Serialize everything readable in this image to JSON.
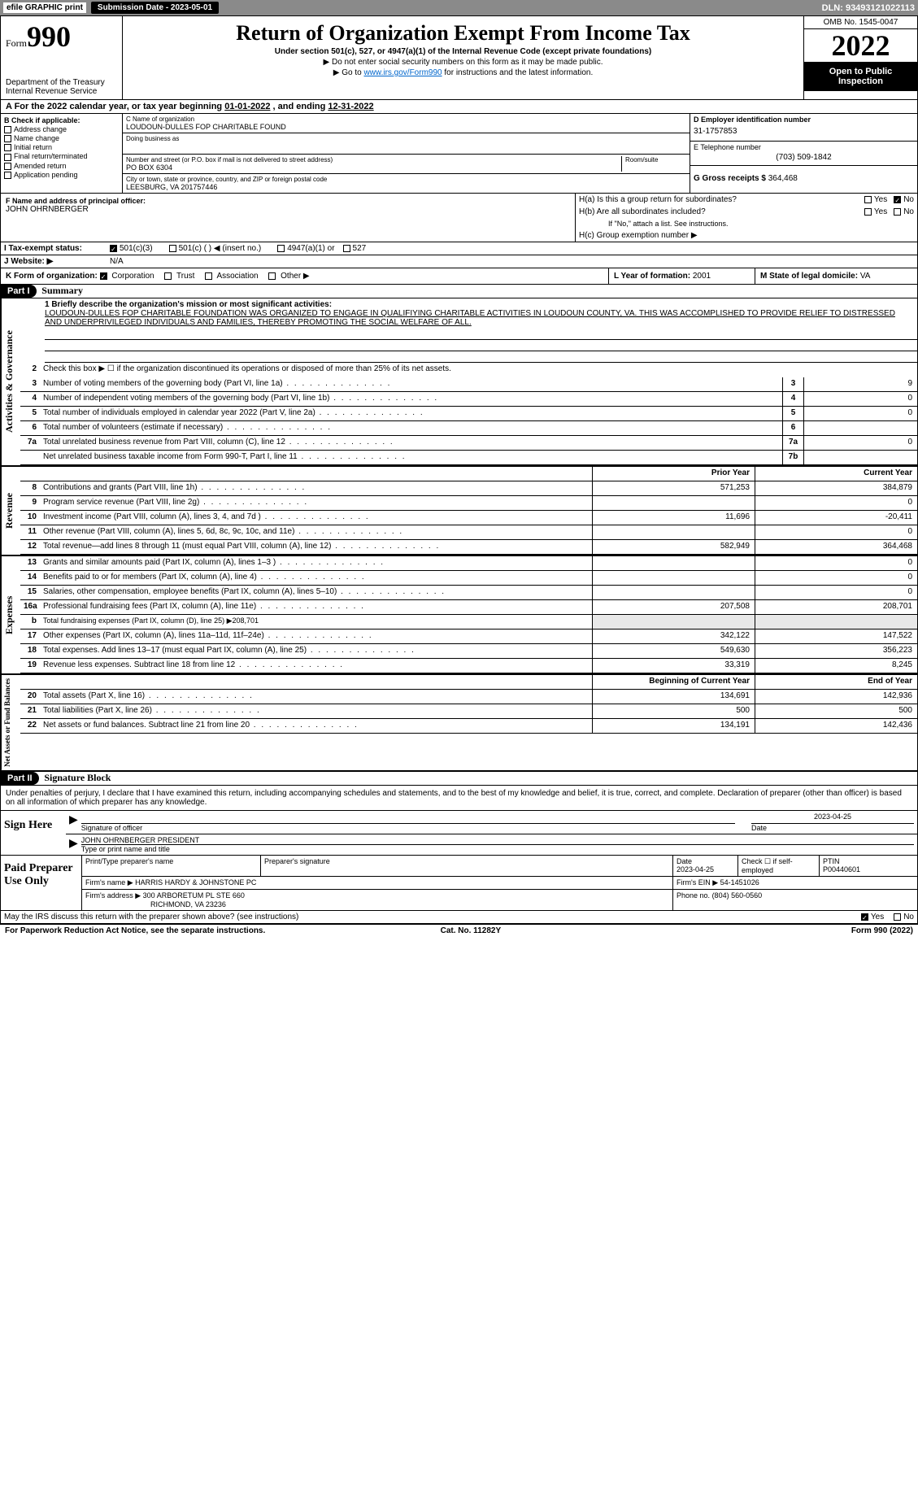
{
  "topbar": {
    "efile": "efile GRAPHIC print",
    "submission_label": "Submission Date - 2023-05-01",
    "dln": "DLN: 93493121022113"
  },
  "header": {
    "form_prefix": "Form",
    "form_number": "990",
    "dept1": "Department of the Treasury",
    "dept2": "Internal Revenue Service",
    "title": "Return of Organization Exempt From Income Tax",
    "subtitle": "Under section 501(c), 527, or 4947(a)(1) of the Internal Revenue Code (except private foundations)",
    "note1": "▶ Do not enter social security numbers on this form as it may be made public.",
    "note2_pre": "▶ Go to ",
    "note2_link": "www.irs.gov/Form990",
    "note2_post": " for instructions and the latest information.",
    "omb": "OMB No. 1545-0047",
    "year": "2022",
    "open": "Open to Public Inspection"
  },
  "period": {
    "line_a_pre": "A For the 2022 calendar year, or tax year beginning ",
    "begin": "01-01-2022",
    "mid": " , and ending ",
    "end": "12-31-2022"
  },
  "section_b": {
    "title": "B Check if applicable:",
    "opts": [
      "Address change",
      "Name change",
      "Initial return",
      "Final return/terminated",
      "Amended return",
      "Application pending"
    ]
  },
  "section_c": {
    "name_lbl": "C Name of organization",
    "name": "LOUDOUN-DULLES FOP CHARITABLE FOUND",
    "dba_lbl": "Doing business as",
    "dba": "",
    "addr_lbl": "Number and street (or P.O. box if mail is not delivered to street address)",
    "room_lbl": "Room/suite",
    "addr": "PO BOX 6304",
    "city_lbl": "City or town, state or province, country, and ZIP or foreign postal code",
    "city": "LEESBURG, VA  201757446"
  },
  "section_d": {
    "lbl": "D Employer identification number",
    "val": "31-1757853"
  },
  "section_e": {
    "lbl": "E Telephone number",
    "val": "(703) 509-1842"
  },
  "section_g": {
    "lbl": "G Gross receipts $",
    "val": "364,468"
  },
  "section_f": {
    "lbl": "F Name and address of principal officer:",
    "val": "JOHN OHRNBERGER"
  },
  "section_h": {
    "ha": "H(a) Is this a group return for subordinates?",
    "hb": "H(b) Are all subordinates included?",
    "hb_note": "If \"No,\" attach a list. See instructions.",
    "hc": "H(c) Group exemption number ▶",
    "yes": "Yes",
    "no": "No"
  },
  "section_i": {
    "lbl": "I Tax-exempt status:",
    "o1": "501(c)(3)",
    "o2": "501(c) (  ) ◀ (insert no.)",
    "o3": "4947(a)(1) or",
    "o4": "527"
  },
  "section_j": {
    "lbl": "J Website: ▶",
    "val": "N/A"
  },
  "section_k": {
    "lbl": "K Form of organization:",
    "o1": "Corporation",
    "o2": "Trust",
    "o3": "Association",
    "o4": "Other ▶"
  },
  "section_l": {
    "lbl": "L Year of formation:",
    "val": "2001"
  },
  "section_m": {
    "lbl": "M State of legal domicile:",
    "val": "VA"
  },
  "part1": {
    "label": "Part I",
    "title": "Summary",
    "l1_lbl": "1 Briefly describe the organization's mission or most significant activities:",
    "l1_text": "LOUDOUN-DULLES FOP CHARITABLE FOUNDATION WAS ORGANIZED TO ENGAGE IN QUALIFIYING CHARITABLE ACTIVITIES IN LOUDOUN COUNTY, VA. THIS WAS ACCOMPLISHED TO PROVIDE RELIEF TO DISTRESSED AND UNDERPRIVILEGED INDIVIDUALS AND FAMILIES, THEREBY PROMOTING THE SOCIAL WELFARE OF ALL.",
    "vtab1": "Activities & Governance",
    "vtab2": "Revenue",
    "vtab3": "Expenses",
    "vtab4": "Net Assets or Fund Balances",
    "l2": "Check this box ▶ ☐ if the organization discontinued its operations or disposed of more than 25% of its net assets.",
    "lines_ag": [
      {
        "n": "3",
        "d": "Number of voting members of the governing body (Part VI, line 1a)",
        "b": "3",
        "v": "9"
      },
      {
        "n": "4",
        "d": "Number of independent voting members of the governing body (Part VI, line 1b)",
        "b": "4",
        "v": "0"
      },
      {
        "n": "5",
        "d": "Total number of individuals employed in calendar year 2022 (Part V, line 2a)",
        "b": "5",
        "v": "0"
      },
      {
        "n": "6",
        "d": "Total number of volunteers (estimate if necessary)",
        "b": "6",
        "v": ""
      },
      {
        "n": "7a",
        "d": "Total unrelated business revenue from Part VIII, column (C), line 12",
        "b": "7a",
        "v": "0"
      },
      {
        "n": "",
        "d": "Net unrelated business taxable income from Form 990-T, Part I, line 11",
        "b": "7b",
        "v": ""
      }
    ],
    "col_prior": "Prior Year",
    "col_current": "Current Year",
    "lines_rev": [
      {
        "n": "8",
        "d": "Contributions and grants (Part VIII, line 1h)",
        "p": "571,253",
        "c": "384,879"
      },
      {
        "n": "9",
        "d": "Program service revenue (Part VIII, line 2g)",
        "p": "",
        "c": "0"
      },
      {
        "n": "10",
        "d": "Investment income (Part VIII, column (A), lines 3, 4, and 7d )",
        "p": "11,696",
        "c": "-20,411"
      },
      {
        "n": "11",
        "d": "Other revenue (Part VIII, column (A), lines 5, 6d, 8c, 9c, 10c, and 11e)",
        "p": "",
        "c": "0"
      },
      {
        "n": "12",
        "d": "Total revenue—add lines 8 through 11 (must equal Part VIII, column (A), line 12)",
        "p": "582,949",
        "c": "364,468"
      }
    ],
    "lines_exp": [
      {
        "n": "13",
        "d": "Grants and similar amounts paid (Part IX, column (A), lines 1–3 )",
        "p": "",
        "c": "0"
      },
      {
        "n": "14",
        "d": "Benefits paid to or for members (Part IX, column (A), line 4)",
        "p": "",
        "c": "0"
      },
      {
        "n": "15",
        "d": "Salaries, other compensation, employee benefits (Part IX, column (A), lines 5–10)",
        "p": "",
        "c": "0"
      },
      {
        "n": "16a",
        "d": "Professional fundraising fees (Part IX, column (A), line 11e)",
        "p": "207,508",
        "c": "208,701"
      },
      {
        "n": "b",
        "d": "Total fundraising expenses (Part IX, column (D), line 25) ▶208,701",
        "p": "",
        "c": "",
        "nocols": true
      },
      {
        "n": "17",
        "d": "Other expenses (Part IX, column (A), lines 11a–11d, 11f–24e)",
        "p": "342,122",
        "c": "147,522"
      },
      {
        "n": "18",
        "d": "Total expenses. Add lines 13–17 (must equal Part IX, column (A), line 25)",
        "p": "549,630",
        "c": "356,223"
      },
      {
        "n": "19",
        "d": "Revenue less expenses. Subtract line 18 from line 12",
        "p": "33,319",
        "c": "8,245"
      }
    ],
    "col_begin": "Beginning of Current Year",
    "col_end": "End of Year",
    "lines_net": [
      {
        "n": "20",
        "d": "Total assets (Part X, line 16)",
        "p": "134,691",
        "c": "142,936"
      },
      {
        "n": "21",
        "d": "Total liabilities (Part X, line 26)",
        "p": "500",
        "c": "500"
      },
      {
        "n": "22",
        "d": "Net assets or fund balances. Subtract line 21 from line 20",
        "p": "134,191",
        "c": "142,436"
      }
    ]
  },
  "part2": {
    "label": "Part II",
    "title": "Signature Block",
    "decl": "Under penalties of perjury, I declare that I have examined this return, including accompanying schedules and statements, and to the best of my knowledge and belief, it is true, correct, and complete. Declaration of preparer (other than officer) is based on all information of which preparer has any knowledge.",
    "sign_here": "Sign Here",
    "sig_officer": "Signature of officer",
    "sig_date": "Date",
    "sig_date_val": "2023-04-25",
    "officer_name": "JOHN OHRNBERGER  PRESIDENT",
    "officer_lbl": "Type or print name and title",
    "paid_prep": "Paid Preparer Use Only",
    "prep_name_lbl": "Print/Type preparer's name",
    "prep_sig_lbl": "Preparer's signature",
    "prep_date_lbl": "Date",
    "prep_date": "2023-04-25",
    "prep_check": "Check ☐ if self-employed",
    "ptin_lbl": "PTIN",
    "ptin": "P00440601",
    "firm_name_lbl": "Firm's name ▶",
    "firm_name": "HARRIS HARDY & JOHNSTONE PC",
    "firm_ein_lbl": "Firm's EIN ▶",
    "firm_ein": "54-1451026",
    "firm_addr_lbl": "Firm's address ▶",
    "firm_addr1": "300 ARBORETUM PL STE 660",
    "firm_addr2": "RICHMOND, VA  23236",
    "firm_phone_lbl": "Phone no.",
    "firm_phone": "(804) 560-0560",
    "discuss": "May the IRS discuss this return with the preparer shown above? (see instructions)",
    "yes": "Yes",
    "no": "No"
  },
  "footer": {
    "left": "For Paperwork Reduction Act Notice, see the separate instructions.",
    "mid": "Cat. No. 11282Y",
    "right_pre": "Form ",
    "right_form": "990",
    "right_post": " (2022)"
  }
}
